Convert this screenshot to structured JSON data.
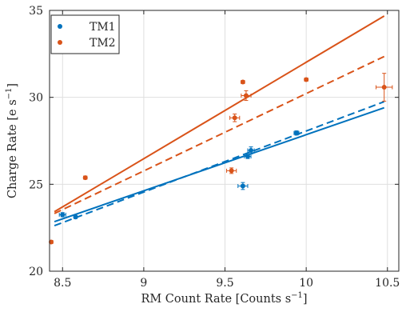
{
  "chart_data": {
    "type": "scatter",
    "xlabel_main": "RM Count Rate [Counts s",
    "xlabel_sup": "−1",
    "xlabel_end": "]",
    "ylabel_main": "Charge Rate [e s",
    "ylabel_sup": "−1",
    "ylabel_end": "]",
    "xlim": [
      8.42,
      10.57
    ],
    "ylim": [
      20,
      35
    ],
    "xticks": [
      8.5,
      9,
      9.5,
      10,
      10.5
    ],
    "xtick_labels": [
      "8.5",
      "9",
      "9.5",
      "10",
      "10.5"
    ],
    "yticks": [
      20,
      25,
      30,
      35
    ],
    "ytick_labels": [
      "20",
      "25",
      "30",
      "35"
    ],
    "grid": true,
    "legend_position": "top-left",
    "series": [
      {
        "name": "TM1",
        "color": "#0072BD",
        "points": [
          {
            "x": 8.5,
            "y": 23.25,
            "xerr": 0.02,
            "yerr": 0.12
          },
          {
            "x": 8.58,
            "y": 23.12,
            "xerr": 0.01,
            "yerr": 0.08
          },
          {
            "x": 9.61,
            "y": 24.9,
            "xerr": 0.03,
            "yerr": 0.2
          },
          {
            "x": 9.64,
            "y": 26.6,
            "xerr": 0.02,
            "yerr": 0.12
          },
          {
            "x": 9.66,
            "y": 26.95,
            "xerr": 0.02,
            "yerr": 0.2
          },
          {
            "x": 9.94,
            "y": 27.95,
            "xerr": 0.015,
            "yerr": 0.12
          }
        ],
        "fit_solid": {
          "x": [
            8.45,
            10.48
          ],
          "y": [
            22.85,
            29.4
          ]
        },
        "fit_dashed": {
          "x": [
            8.45,
            10.48
          ],
          "y": [
            22.62,
            29.75
          ]
        }
      },
      {
        "name": "TM2",
        "color": "#D95319",
        "points": [
          {
            "x": 8.43,
            "y": 21.68,
            "xerr": 0.01,
            "yerr": 0.08
          },
          {
            "x": 8.64,
            "y": 25.38,
            "xerr": 0.01,
            "yerr": 0.08
          },
          {
            "x": 9.54,
            "y": 25.78,
            "xerr": 0.03,
            "yerr": 0.16
          },
          {
            "x": 9.56,
            "y": 28.82,
            "xerr": 0.03,
            "yerr": 0.22
          },
          {
            "x": 9.61,
            "y": 30.88,
            "xerr": 0.01,
            "yerr": 0.08
          },
          {
            "x": 9.63,
            "y": 30.1,
            "xerr": 0.03,
            "yerr": 0.28
          },
          {
            "x": 10.0,
            "y": 31.02,
            "xerr": 0.01,
            "yerr": 0.08
          },
          {
            "x": 10.48,
            "y": 30.58,
            "xerr": 0.05,
            "yerr": 0.8
          }
        ],
        "fit_solid": {
          "x": [
            8.45,
            10.48
          ],
          "y": [
            23.42,
            34.68
          ]
        },
        "fit_dashed": {
          "x": [
            8.45,
            10.48
          ],
          "y": [
            23.32,
            32.35
          ]
        }
      }
    ]
  }
}
